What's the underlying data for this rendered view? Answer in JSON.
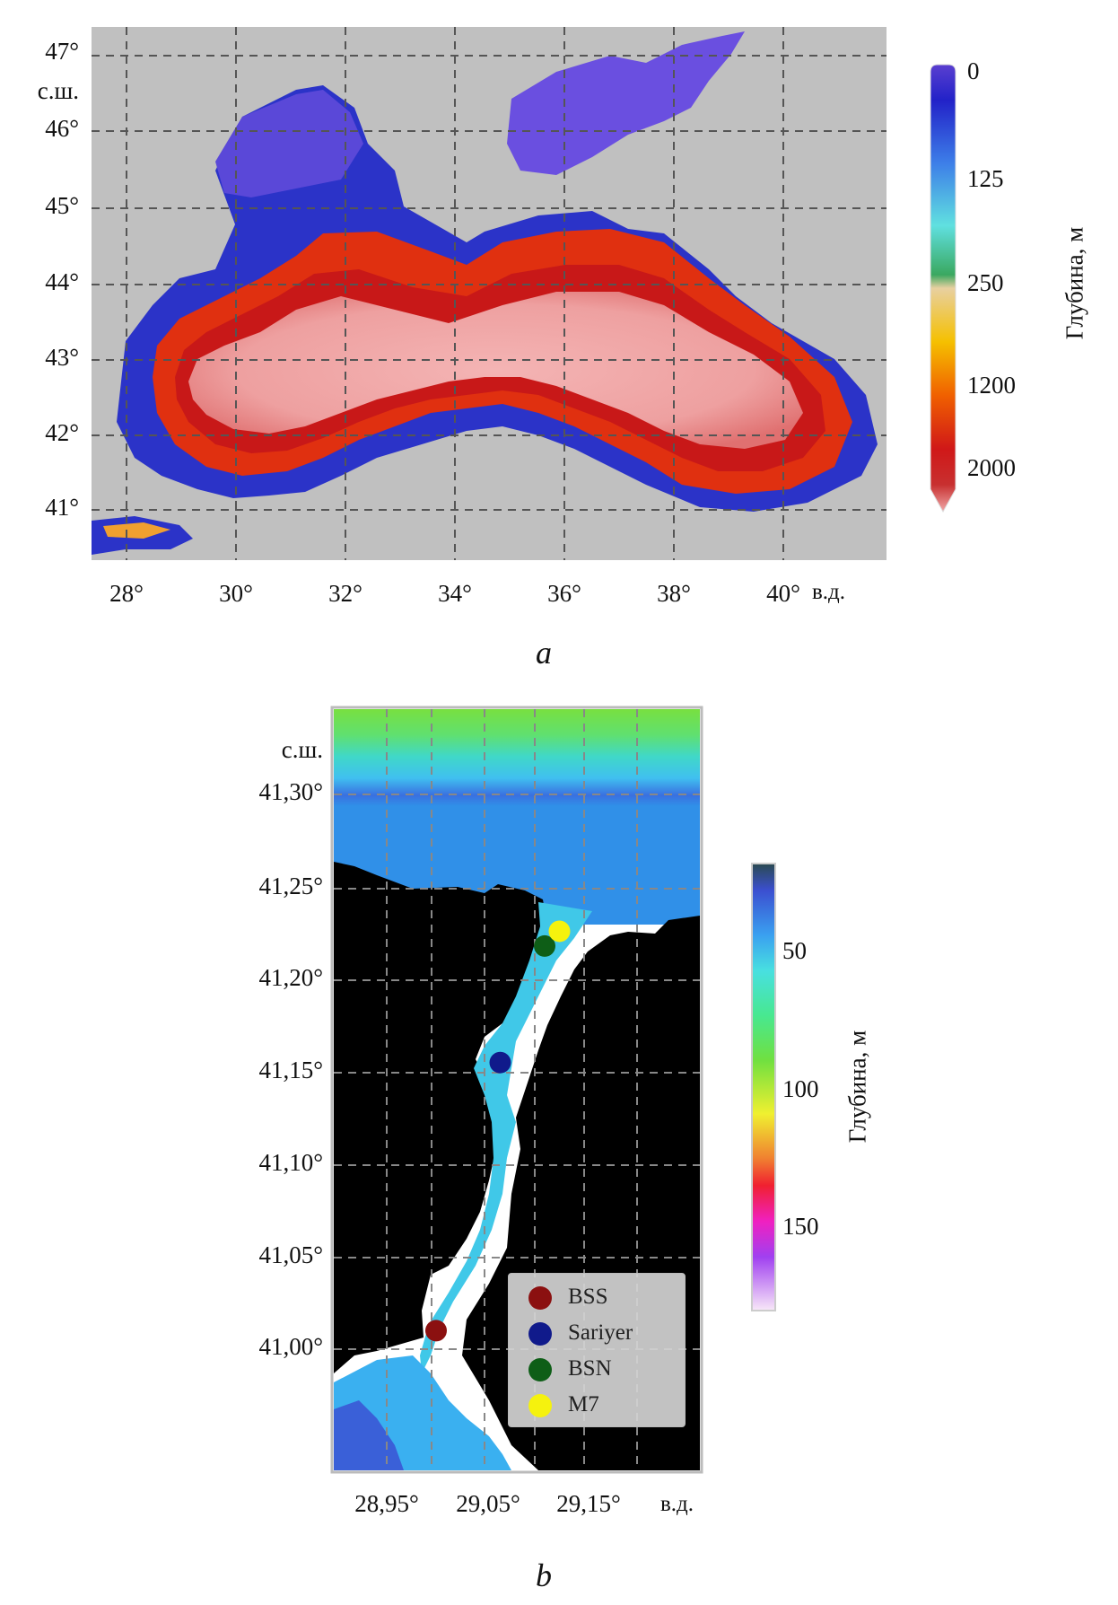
{
  "panel_a": {
    "letter": "a",
    "lat_ticks": [
      {
        "text": "47°",
        "value": 47
      },
      {
        "text": "46°",
        "value": 46
      },
      {
        "text": "45°",
        "value": 45
      },
      {
        "text": "44°",
        "value": 44
      },
      {
        "text": "43°",
        "value": 43
      },
      {
        "text": "42°",
        "value": 42
      },
      {
        "text": "41°",
        "value": 41
      }
    ],
    "lat_unit": "с.ш.",
    "lon_ticks": [
      {
        "text": "28°",
        "value": 28
      },
      {
        "text": "30°",
        "value": 30
      },
      {
        "text": "32°",
        "value": 32
      },
      {
        "text": "34°",
        "value": 34
      },
      {
        "text": "36°",
        "value": 36
      },
      {
        "text": "38°",
        "value": 38
      },
      {
        "text": "40°",
        "value": 40
      }
    ],
    "lon_unit": "в.д.",
    "colorbar": {
      "title": "Глубина, м",
      "ticks": [
        "0",
        "125",
        "250",
        "1200",
        "2000"
      ]
    },
    "colors": {
      "land": "#c0c0c0",
      "shelf": "#2b33c8",
      "deep": "#f0a0a0",
      "slope": "#d02020"
    }
  },
  "panel_b": {
    "letter": "b",
    "lat_ticks": [
      {
        "text": "41,30°",
        "value": 41.3
      },
      {
        "text": "41,25°",
        "value": 41.25
      },
      {
        "text": "41,20°",
        "value": 41.2
      },
      {
        "text": "41,15°",
        "value": 41.15
      },
      {
        "text": "41,10°",
        "value": 41.1
      },
      {
        "text": "41,05°",
        "value": 41.05
      },
      {
        "text": "41,00°",
        "value": 41.0
      }
    ],
    "lat_unit": "с.ш.",
    "lon_ticks": [
      {
        "text": "28,95°",
        "value": 28.95
      },
      {
        "text": "29,05°",
        "value": 29.05
      },
      {
        "text": "29,15°",
        "value": 29.15
      }
    ],
    "lon_unit": "в.д.",
    "colorbar": {
      "title": "Глубина, м",
      "ticks": [
        "50",
        "100",
        "150"
      ]
    },
    "stations": [
      {
        "name": "BSS",
        "color": "#8b1010",
        "lat": 41.01,
        "lon": 29.0
      },
      {
        "name": "Sariyer",
        "color": "#101a8b",
        "lat": 41.155,
        "lon": 29.065
      },
      {
        "name": "BSN",
        "color": "#0e5e17",
        "lat": 41.218,
        "lon": 29.11
      },
      {
        "name": "M7",
        "color": "#f5f20e",
        "lat": 41.226,
        "lon": 29.125
      }
    ],
    "colors": {
      "land": "#000000"
    }
  }
}
